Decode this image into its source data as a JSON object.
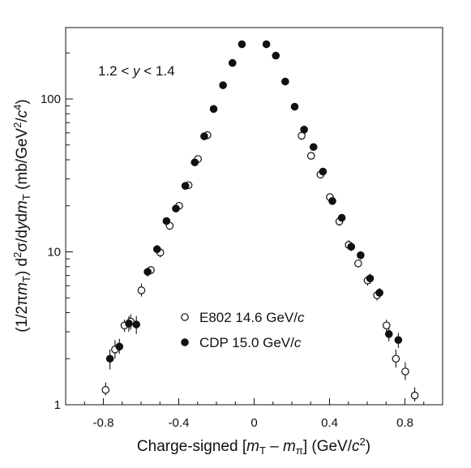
{
  "chart_data": {
    "type": "scatter",
    "title": "",
    "xlabel": "Charge-signed [m_T – m_π] (GeV/c²)",
    "ylabel": "(1/2πm_T) d²σ/dydm_T (mb/GeV²/c⁴)",
    "annotation": "1.2 < y < 1.4",
    "xlim": [
      -1.0,
      1.0
    ],
    "ylim": [
      1,
      300
    ],
    "yscale": "log",
    "x_ticks": [
      -0.8,
      -0.4,
      0,
      0.4,
      0.8
    ],
    "x_tick_labels": [
      "-0.8",
      "-0.4",
      "0",
      "0.4",
      "0.8"
    ],
    "y_ticks": [
      1,
      10,
      100
    ],
    "y_tick_labels": [
      "1",
      "10",
      "100"
    ],
    "legend_position": "lower-center",
    "series": [
      {
        "name": "E802",
        "legend_label": "E802  14.6 GeV/c",
        "marker": "open-circle",
        "points": [
          {
            "x": -0.788,
            "y": 1.25,
            "err_lo": 1.15,
            "err_hi": 1.4
          },
          {
            "x": -0.738,
            "y": 2.3,
            "err_lo": 2.0,
            "err_hi": 2.65
          },
          {
            "x": -0.688,
            "y": 3.3,
            "err_lo": 3.0,
            "err_hi": 3.6
          },
          {
            "x": -0.655,
            "y": 3.5,
            "err_lo": 3.1,
            "err_hi": 3.9
          },
          {
            "x": -0.598,
            "y": 5.6,
            "err_lo": 5.1,
            "err_hi": 6.2
          },
          {
            "x": -0.548,
            "y": 7.6,
            "err_lo": 7.2,
            "err_hi": 8.0
          },
          {
            "x": -0.498,
            "y": 9.9,
            "err_lo": 9.2,
            "err_hi": 10.6
          },
          {
            "x": -0.448,
            "y": 14.8,
            "err_lo": 14.0,
            "err_hi": 15.6
          },
          {
            "x": -0.398,
            "y": 20.0,
            "err_lo": 19.0,
            "err_hi": 21.0
          },
          {
            "x": -0.348,
            "y": 27.3,
            "err_lo": 26.0,
            "err_hi": 28.6
          },
          {
            "x": -0.298,
            "y": 40.5,
            "err_lo": 38.8,
            "err_hi": 42.2
          },
          {
            "x": -0.248,
            "y": 58.0,
            "err_lo": 54.5,
            "err_hi": 61.5
          },
          {
            "x": 0.252,
            "y": 57.5,
            "err_lo": 54.0,
            "err_hi": 61.0
          },
          {
            "x": 0.302,
            "y": 42.5,
            "err_lo": 40.5,
            "err_hi": 44.5
          },
          {
            "x": 0.352,
            "y": 32.0,
            "err_lo": 30.5,
            "err_hi": 33.5
          },
          {
            "x": 0.402,
            "y": 22.8,
            "err_lo": 21.8,
            "err_hi": 23.8
          },
          {
            "x": 0.452,
            "y": 15.8,
            "err_lo": 14.8,
            "err_hi": 16.8
          },
          {
            "x": 0.502,
            "y": 11.1,
            "err_lo": 10.3,
            "err_hi": 11.9
          },
          {
            "x": 0.552,
            "y": 8.4,
            "err_lo": 7.9,
            "err_hi": 8.9
          },
          {
            "x": 0.602,
            "y": 6.5,
            "err_lo": 6.0,
            "err_hi": 7.0
          },
          {
            "x": 0.652,
            "y": 5.2,
            "err_lo": 4.8,
            "err_hi": 5.6
          },
          {
            "x": 0.702,
            "y": 3.3,
            "err_lo": 3.0,
            "err_hi": 3.6
          },
          {
            "x": 0.752,
            "y": 2.0,
            "err_lo": 1.75,
            "err_hi": 2.3
          },
          {
            "x": 0.802,
            "y": 1.65,
            "err_lo": 1.45,
            "err_hi": 1.9
          },
          {
            "x": 0.852,
            "y": 1.15,
            "err_lo": 1.05,
            "err_hi": 1.3
          }
        ]
      },
      {
        "name": "CDP",
        "legend_label": "CDP   15.0 GeV/c",
        "marker": "filled-circle",
        "points": [
          {
            "x": -0.765,
            "y": 2.0,
            "err_lo": 1.7,
            "err_hi": 2.3
          },
          {
            "x": -0.715,
            "y": 2.4,
            "err_lo": 2.15,
            "err_hi": 2.7
          },
          {
            "x": -0.665,
            "y": 3.4,
            "err_lo": 3.0,
            "err_hi": 3.8
          },
          {
            "x": -0.625,
            "y": 3.35,
            "err_lo": 2.9,
            "err_hi": 3.8
          },
          {
            "x": -0.565,
            "y": 7.4,
            "err_lo": 6.9,
            "err_hi": 7.9
          },
          {
            "x": -0.515,
            "y": 10.4,
            "err_lo": 9.7,
            "err_hi": 11.1
          },
          {
            "x": -0.465,
            "y": 15.9,
            "err_lo": 15.0,
            "err_hi": 16.8
          },
          {
            "x": -0.415,
            "y": 19.2,
            "err_lo": 18.2,
            "err_hi": 20.2
          },
          {
            "x": -0.365,
            "y": 27.0,
            "err_lo": 25.8,
            "err_hi": 28.2
          },
          {
            "x": -0.315,
            "y": 38.5,
            "err_lo": 37.0,
            "err_hi": 40.0
          },
          {
            "x": -0.265,
            "y": 57.0,
            "err_lo": 55.0,
            "err_hi": 59.0
          },
          {
            "x": -0.215,
            "y": 86.0,
            "err_lo": 84.0,
            "err_hi": 88.0
          },
          {
            "x": -0.165,
            "y": 123.0,
            "err_lo": 121.0,
            "err_hi": 125.0
          },
          {
            "x": -0.115,
            "y": 172.0,
            "err_lo": 169.0,
            "err_hi": 175.0
          },
          {
            "x": -0.065,
            "y": 228.0,
            "err_lo": 225.0,
            "err_hi": 231.0
          },
          {
            "x": 0.065,
            "y": 228.0,
            "err_lo": 225.0,
            "err_hi": 231.0
          },
          {
            "x": 0.115,
            "y": 192.0,
            "err_lo": 189.0,
            "err_hi": 195.0
          },
          {
            "x": 0.165,
            "y": 130.0,
            "err_lo": 128.0,
            "err_hi": 132.0
          },
          {
            "x": 0.215,
            "y": 89.0,
            "err_lo": 87.0,
            "err_hi": 91.0
          },
          {
            "x": 0.265,
            "y": 63.0,
            "err_lo": 61.0,
            "err_hi": 65.0
          },
          {
            "x": 0.315,
            "y": 48.5,
            "err_lo": 47.0,
            "err_hi": 50.0
          },
          {
            "x": 0.365,
            "y": 33.5,
            "err_lo": 32.2,
            "err_hi": 34.8
          },
          {
            "x": 0.415,
            "y": 21.5,
            "err_lo": 20.5,
            "err_hi": 22.5
          },
          {
            "x": 0.465,
            "y": 16.7,
            "err_lo": 15.8,
            "err_hi": 17.6
          },
          {
            "x": 0.515,
            "y": 10.8,
            "err_lo": 10.1,
            "err_hi": 11.5
          },
          {
            "x": 0.565,
            "y": 9.5,
            "err_lo": 8.9,
            "err_hi": 10.1
          },
          {
            "x": 0.615,
            "y": 6.7,
            "err_lo": 6.2,
            "err_hi": 7.2
          },
          {
            "x": 0.665,
            "y": 5.4,
            "err_lo": 5.0,
            "err_hi": 5.8
          },
          {
            "x": 0.715,
            "y": 2.9,
            "err_lo": 2.6,
            "err_hi": 3.2
          },
          {
            "x": 0.765,
            "y": 2.65,
            "err_lo": 2.35,
            "err_hi": 2.95
          }
        ]
      }
    ]
  }
}
